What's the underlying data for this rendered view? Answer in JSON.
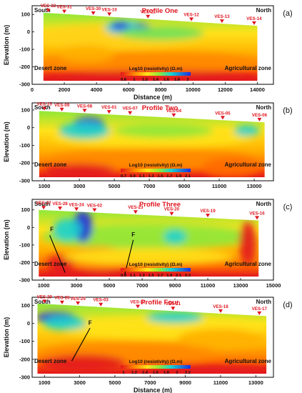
{
  "figure": {
    "panels": [
      {
        "letter": "(a)",
        "title": "Profile One",
        "left_label": "South",
        "right_label": "North",
        "left_zone": "Desert zone",
        "right_zone": "Agricultural zone",
        "ylabel": "Elevation (m)",
        "xlabel": "Distance (m)",
        "yticks": [
          "-300",
          "-200",
          "-100",
          "0",
          "100"
        ],
        "xticks": [
          "0",
          "2000",
          "4000",
          "6000",
          "8000",
          "10000",
          "12000",
          "14000"
        ],
        "colorbar_title": "Log10 (resistivity) (Ω.m)",
        "colorbar_ticks": [
          "0.8",
          "1",
          "1.2",
          "1.4",
          "1.6",
          "1.8",
          "2"
        ],
        "faults": []
      },
      {
        "letter": "(b)",
        "title": "Profile Two",
        "left_label": "South",
        "right_label": "North",
        "left_zone": "Desert zone",
        "right_zone": "Agricultural zone",
        "ylabel": "Elevation (m)",
        "xlabel": "",
        "yticks": [
          "-300",
          "-200",
          "-100",
          "0",
          "100"
        ],
        "xticks": [
          "1000",
          "3000",
          "5000",
          "7000",
          "9000",
          "11000",
          "13000"
        ],
        "colorbar_title": "Log10 (resistivity) (Ω.m)",
        "colorbar_ticks": [
          "0.7",
          "0.9",
          "1.1",
          "1.3",
          "1.5",
          "1.7",
          "1.9",
          "2.1"
        ],
        "faults": []
      },
      {
        "letter": "(c)",
        "title": "Profile Three",
        "left_label": "South",
        "right_label": "North",
        "left_zone": "Desert zone",
        "right_zone": "Agricultural zone",
        "ylabel": "Elevation (m)",
        "xlabel": "",
        "yticks": [
          "-300",
          "-200",
          "-100",
          "0",
          "100"
        ],
        "xticks": [
          "1000",
          "3000",
          "5000",
          "7000",
          "9000",
          "11000",
          "13000",
          "15000"
        ],
        "colorbar_title": "Log10 (resistivity) (Ω.m)",
        "colorbar_ticks": [
          "0.9",
          "1.1",
          "1.3",
          "1.5",
          "1.7",
          "1.9",
          "2.1",
          "2.3"
        ],
        "faults": [
          "F",
          "F"
        ]
      },
      {
        "letter": "(d)",
        "title": "Profile Four",
        "left_label": "South",
        "right_label": "North",
        "left_zone": "Desert zone",
        "right_zone": "Agricultural zone",
        "ylabel": "Elevation (m)",
        "xlabel": "Distance (m)",
        "yticks": [
          "-300",
          "-200",
          "-100",
          "0",
          "100"
        ],
        "xticks": [
          "1000",
          "3000",
          "5000",
          "7000",
          "9000",
          "11000",
          "13000"
        ],
        "colorbar_title": "Log10 (resistivity) (Ω.m)",
        "colorbar_ticks": [
          "1",
          "1.2",
          "1.4",
          "1.6",
          "1.8",
          "2",
          "2.2"
        ],
        "faults": [
          "F"
        ]
      }
    ]
  },
  "chart_data": [
    {
      "type": "heatmap",
      "title": "Profile One",
      "xlabel": "Distance (m)",
      "ylabel": "Elevation (m)",
      "xlim": [
        0,
        15000
      ],
      "ylim": [
        -300,
        150
      ],
      "colorbar": {
        "label": "Log10 (resistivity) (Ω.m)",
        "range": [
          0.8,
          2.0
        ]
      },
      "stations": [
        {
          "name": "VES-32",
          "x": 1000
        },
        {
          "name": "VES-31",
          "x": 2000
        },
        {
          "name": "VES-30",
          "x": 3800
        },
        {
          "name": "VES-10",
          "x": 4800
        },
        {
          "name": "VES-11",
          "x": 7200
        },
        {
          "name": "VES-12",
          "x": 9900
        },
        {
          "name": "VES-13",
          "x": 11800
        },
        {
          "name": "VES-14",
          "x": 13800
        }
      ],
      "surface": [
        [
          700,
          110
        ],
        [
          14000,
          35
        ]
      ]
    },
    {
      "type": "heatmap",
      "title": "Profile Two",
      "xlabel": "",
      "ylabel": "Elevation (m)",
      "xlim": [
        300,
        14100
      ],
      "ylim": [
        -300,
        140
      ],
      "colorbar": {
        "label": "Log10 (resistivity) (Ω.m)",
        "range": [
          0.7,
          2.1
        ]
      },
      "stations": [
        {
          "name": "VES-15",
          "x": 1000
        },
        {
          "name": "VES-09",
          "x": 2000
        },
        {
          "name": "VES-08",
          "x": 3300
        },
        {
          "name": "VES-01",
          "x": 4700
        },
        {
          "name": "VES-07",
          "x": 5900
        },
        {
          "name": "VES-04",
          "x": 8400
        },
        {
          "name": "VES-05",
          "x": 11200
        },
        {
          "name": "VES-06",
          "x": 13300
        }
      ],
      "surface": [
        [
          700,
          95
        ],
        [
          13600,
          30
        ]
      ]
    },
    {
      "type": "heatmap",
      "title": "Profile Three",
      "xlabel": "",
      "ylabel": "Elevation (m)",
      "xlim": [
        300,
        15000
      ],
      "ylim": [
        -300,
        160
      ],
      "colorbar": {
        "label": "Log10 (resistivity) (Ω.m)",
        "range": [
          0.9,
          2.3
        ]
      },
      "stations": [
        {
          "name": "VES-27",
          "x": 1000
        },
        {
          "name": "VES-28",
          "x": 2000
        },
        {
          "name": "VES-24",
          "x": 3000
        },
        {
          "name": "VES-02",
          "x": 4100
        },
        {
          "name": "VES-23",
          "x": 6600
        },
        {
          "name": "VES-20",
          "x": 8800
        },
        {
          "name": "VES-19",
          "x": 11000
        },
        {
          "name": "VES-16",
          "x": 14000
        }
      ],
      "surface": [
        [
          700,
          100
        ],
        [
          14100,
          40
        ]
      ]
    },
    {
      "type": "heatmap",
      "title": "Profile Four",
      "xlabel": "Distance (m)",
      "ylabel": "Elevation (m)",
      "xlim": [
        300,
        14000
      ],
      "ylim": [
        -300,
        145
      ],
      "colorbar": {
        "label": "Log10 (resistivity) (Ω.m)",
        "range": [
          1.0,
          2.2
        ]
      },
      "stations": [
        {
          "name": "VES-29",
          "x": 1000
        },
        {
          "name": "VES-26",
          "x": 2000
        },
        {
          "name": "VES-25",
          "x": 2900
        },
        {
          "name": "VES-03",
          "x": 4200
        },
        {
          "name": "VES-22",
          "x": 6300
        },
        {
          "name": "VES-21",
          "x": 8300
        },
        {
          "name": "VES-18",
          "x": 11000
        },
        {
          "name": "VES-17",
          "x": 13200
        }
      ],
      "surface": [
        [
          600,
          110
        ],
        [
          13600,
          40
        ]
      ]
    }
  ]
}
